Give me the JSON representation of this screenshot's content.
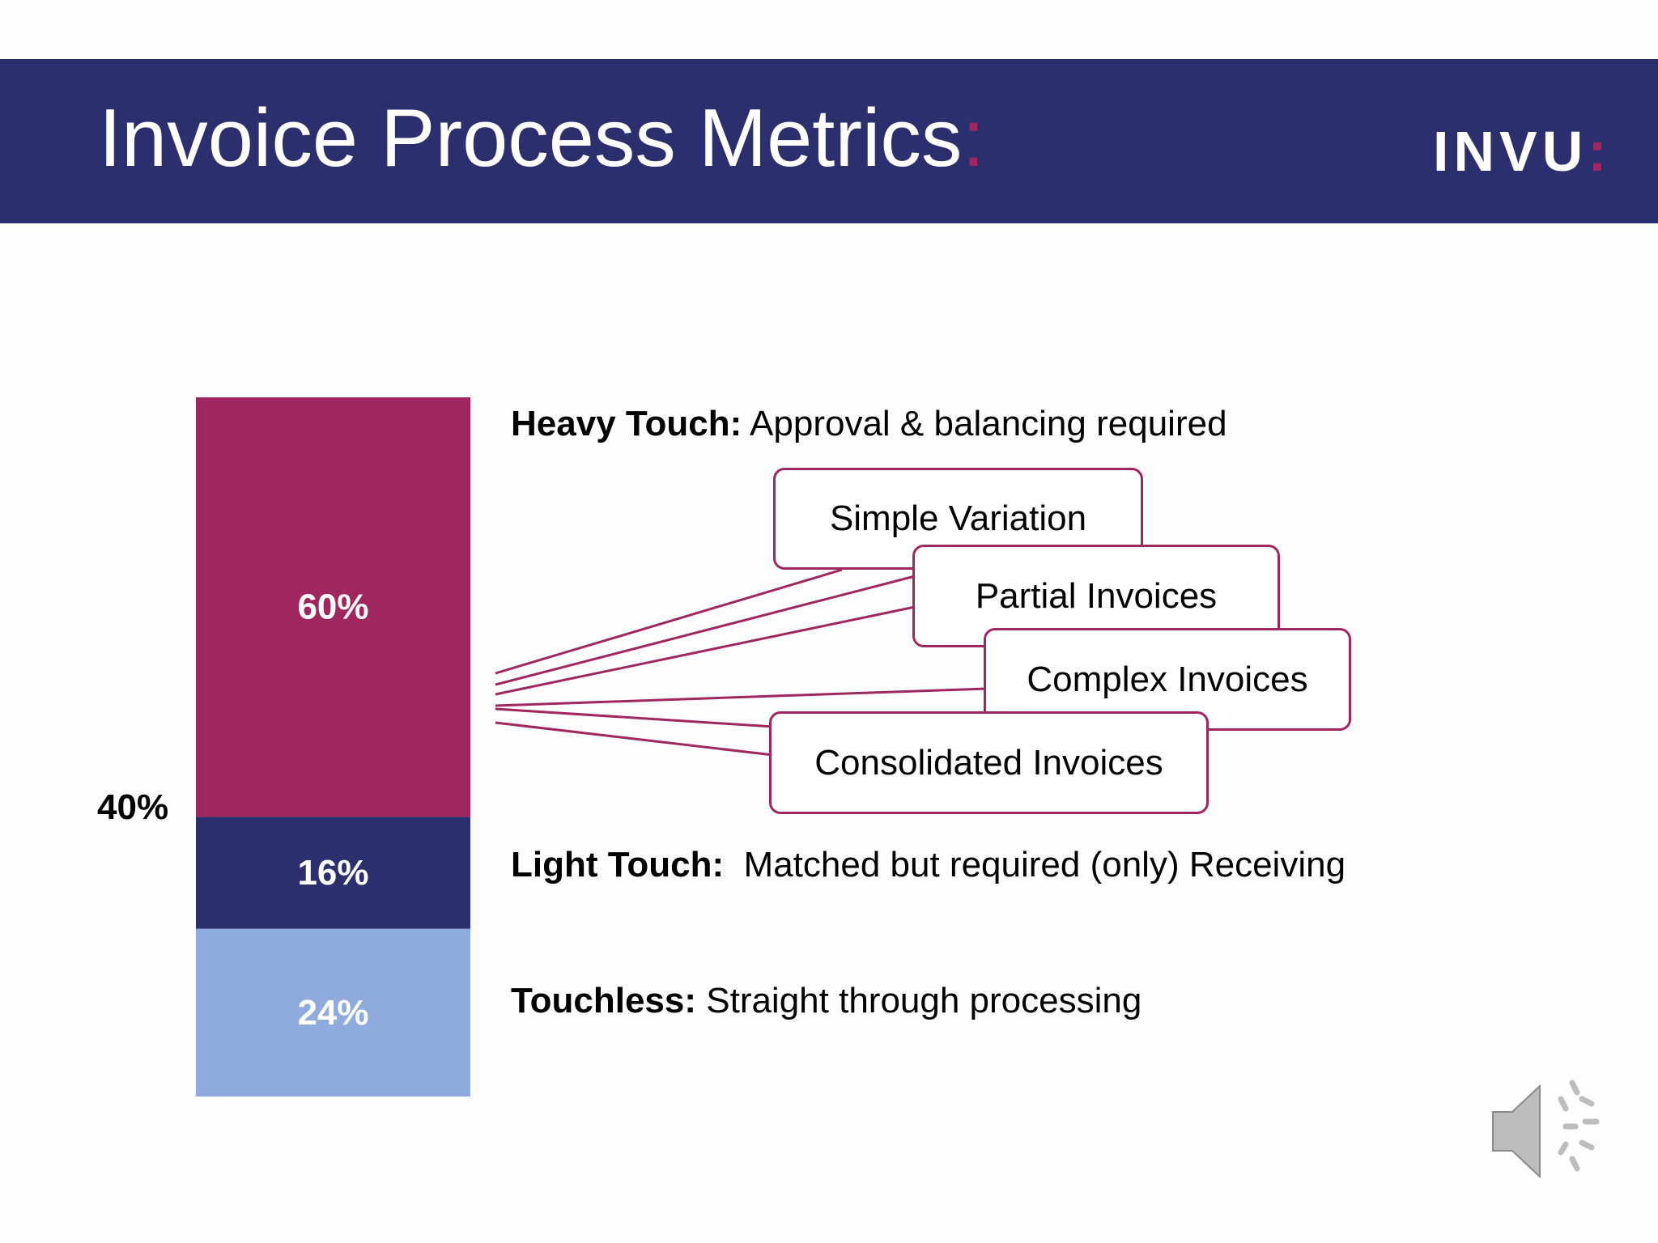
{
  "header": {
    "title": "Invoice Process Metrics",
    "title_colon": ":",
    "logo": "INVU",
    "logo_colon": ":"
  },
  "chart_data": {
    "type": "bar",
    "stacked": true,
    "categories": [
      ""
    ],
    "series": [
      {
        "name": "Touchless",
        "values": [
          24
        ],
        "label": "24%",
        "color": "#8fabdd"
      },
      {
        "name": "Light Touch",
        "values": [
          16
        ],
        "label": "16%",
        "color": "#2b2f6d"
      },
      {
        "name": "Heavy Touch",
        "values": [
          60
        ],
        "label": "60%",
        "color": "#a0265f"
      }
    ],
    "aggregate_label": "40%",
    "ylim": [
      0,
      100
    ],
    "title": "",
    "xlabel": "",
    "ylabel": "",
    "legend": "none",
    "grid": false
  },
  "descriptions": {
    "heavy": {
      "term": "Heavy Touch:",
      "text": " Approval & balancing required"
    },
    "light": {
      "term": "Light Touch:",
      "text": "  Matched but required (only) Receiving"
    },
    "touchless": {
      "term": "Touchless:",
      "text": " Straight through processing"
    }
  },
  "callouts": [
    "Simple Variation",
    "Partial Invoices",
    "Complex Invoices",
    "Consolidated Invoices"
  ],
  "colors": {
    "header": "#2b2f6d",
    "accent": "#a0265f",
    "light_touch": "#2b2f6d",
    "touchless": "#8fabdd"
  },
  "icons": {
    "audio": "speaker-icon"
  }
}
